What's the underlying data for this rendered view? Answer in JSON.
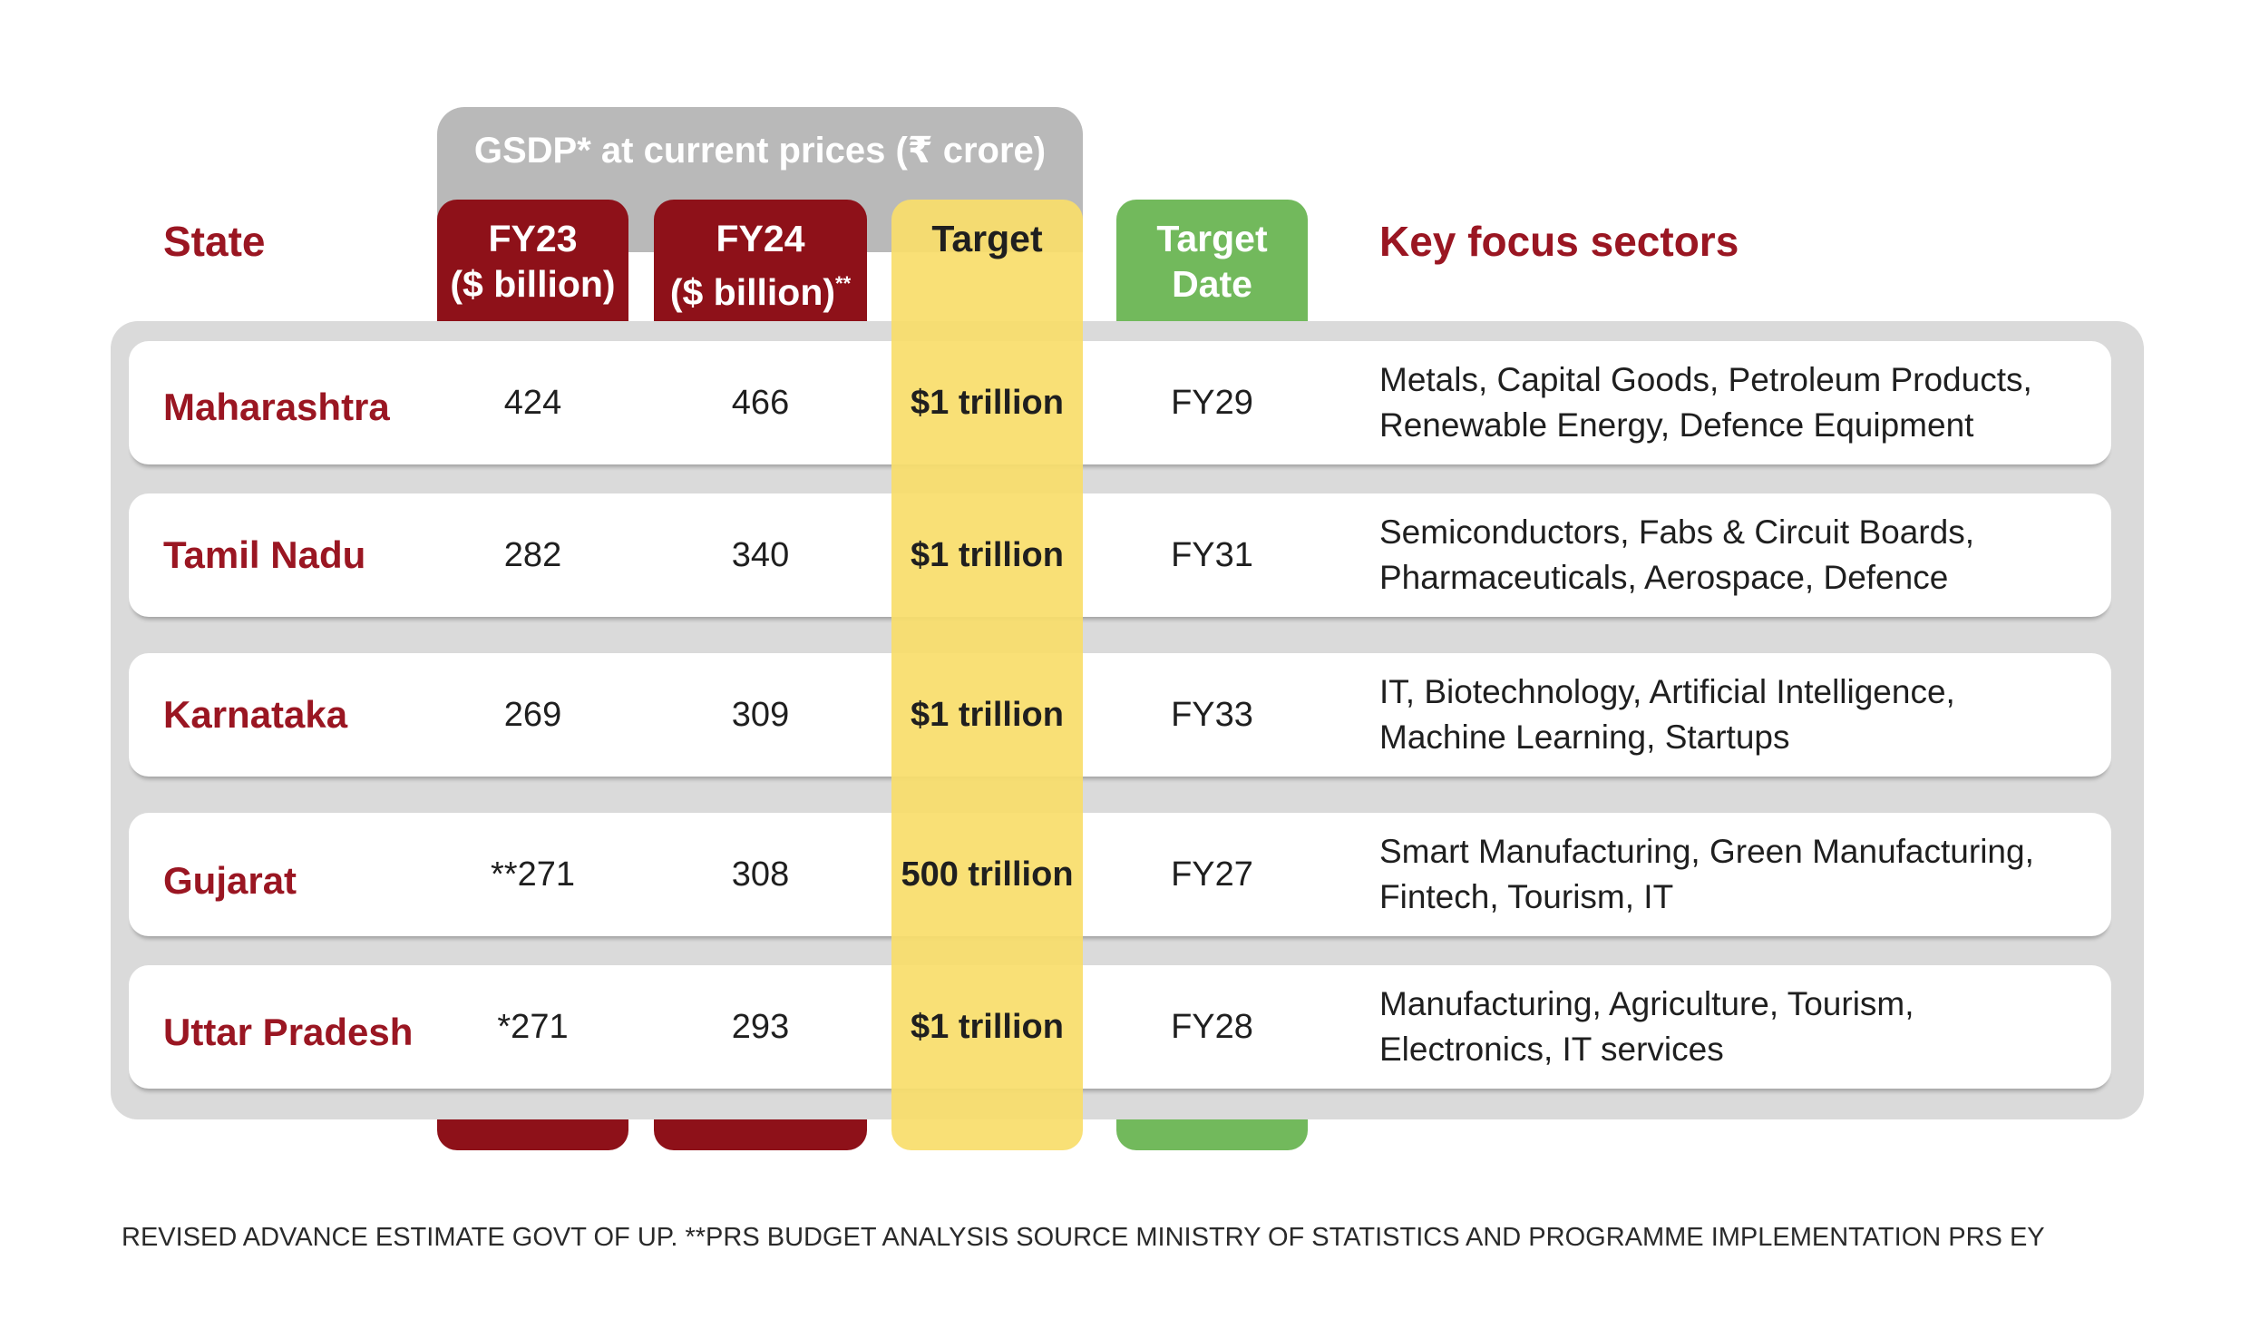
{
  "chart_data": {
    "type": "table",
    "group_header": "GSDP* at current prices (₹ crore)",
    "columns": {
      "state": "State",
      "fy23_line1": "FY23",
      "fy23_line2": "($ billion)",
      "fy24_line1": "FY24",
      "fy24_line2": "($ billion)",
      "fy24_sup": "**",
      "target": "Target",
      "target_date_line1": "Target",
      "target_date_line2": "Date",
      "sectors": "Key focus sectors"
    },
    "rows": [
      {
        "state": "Maharashtra",
        "fy23": "424",
        "fy24": "466",
        "target": "$1 trillion",
        "target_date": "FY29",
        "sectors_line1": "Metals, Capital Goods, Petroleum Products,",
        "sectors_line2": "Renewable Energy, Defence Equipment"
      },
      {
        "state": "Tamil Nadu",
        "fy23": "282",
        "fy24": "340",
        "target": "$1 trillion",
        "target_date": "FY31",
        "sectors_line1": "Semiconductors, Fabs &  Circuit Boards,",
        "sectors_line2": "Pharmaceuticals, Aerospace, Defence"
      },
      {
        "state": "Karnataka",
        "fy23": "269",
        "fy24": "309",
        "target": "$1 trillion",
        "target_date": "FY33",
        "sectors_line1": "IT, Biotechnology, Artificial Intelligence,",
        "sectors_line2": "Machine Learning, Startups"
      },
      {
        "state": "Gujarat",
        "fy23": "**271",
        "fy24": "308",
        "target": "500 trillion",
        "target_date": "FY27",
        "sectors_line1": "Smart Manufacturing, Green Manufacturing,",
        "sectors_line2": "Fintech, Tourism, IT"
      },
      {
        "state": "Uttar Pradesh",
        "fy23": "*271",
        "fy24": "293",
        "target": "$1 trillion",
        "target_date": "FY28",
        "sectors_line1": "Manufacturing, Agriculture, Tourism,",
        "sectors_line2": "Electronics, IT services"
      }
    ],
    "footnote": "REVISED ADVANCE ESTIMATE GOVT OF UP. **PRS BUDGET ANALYSIS SOURCE MINISTRY OF STATISTICS AND PROGRAMME IMPLEMENTATION PRS EY"
  },
  "colors": {
    "maroon": "#8e1119",
    "state_red": "#9a1622",
    "target_yellow": "#f9dd6a",
    "date_green": "#72b95c",
    "gray": "#b9b9b9",
    "table_gray": "#dadada"
  }
}
